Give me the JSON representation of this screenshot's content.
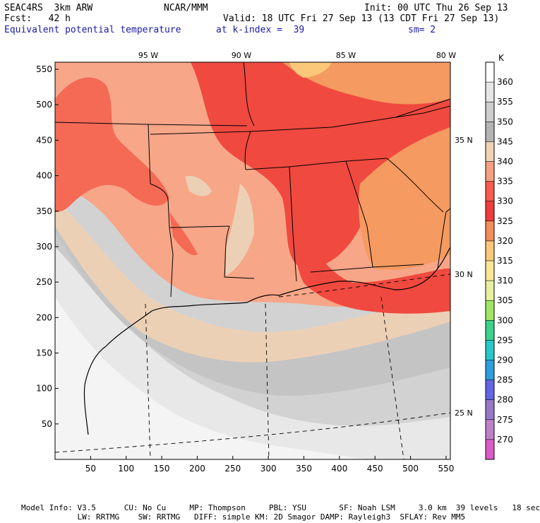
{
  "header": {
    "line1_left": "SEAC4RS  3km ARW",
    "line1_mid": "NCAR/MMM",
    "line1_right": "Init: 00 UTC Thu 26 Sep 13",
    "line2_left": "Fcst:   42 h",
    "line2_right": "Valid: 18 UTC Fri 27 Sep 13 (13 CDT Fri 27 Sep 13)",
    "line3_field": "Equivalent potential temperature",
    "line3_level": "at k-index =  39",
    "line3_sm": "sm= 2"
  },
  "axes": {
    "x_ticks": [
      "50",
      "100",
      "150",
      "200",
      "250",
      "300",
      "350",
      "400",
      "450",
      "500",
      "550"
    ],
    "y_ticks": [
      "50",
      "100",
      "150",
      "200",
      "250",
      "300",
      "350",
      "400",
      "450",
      "500",
      "550"
    ],
    "lon_labels": [
      "95 W",
      "90 W",
      "85 W",
      "80 W"
    ],
    "lat_labels": [
      "35 N",
      "30 N",
      "25 N"
    ]
  },
  "colorbar": {
    "unit": "K",
    "levels": [
      "360",
      "355",
      "350",
      "345",
      "340",
      "335",
      "330",
      "325",
      "320",
      "315",
      "310",
      "305",
      "300",
      "295",
      "290",
      "285",
      "280",
      "275",
      "270"
    ],
    "colors": [
      "#ffffff",
      "#e6e6e6",
      "#cccccc",
      "#b4b4b4",
      "#f0d2b4",
      "#f5a082",
      "#fa5a50",
      "#f03c3c",
      "#f58c5a",
      "#fac878",
      "#fae696",
      "#e6f0a0",
      "#a0e664",
      "#3cd28c",
      "#28c8c8",
      "#2ca0dc",
      "#6464e6",
      "#9678c8",
      "#be80c8",
      "#dc5ac8"
    ]
  },
  "footer": {
    "line1": "Model Info: V3.5      CU: No Cu     MP: Thompson     PBL: YSU       SF: Noah LSM     3.0 km  39 levels   18 sec",
    "line2": "            LW: RRTMG    SW: RRTMG   DIFF: simple KM: 2D Smagor DAMP: Rayleigh3  SFLAY: Rev MM5"
  },
  "map_colors": {
    "c360": "#ffffff",
    "c355": "#e8e8e8",
    "c350": "#d2d2d2",
    "c345": "#bdbdbd",
    "c340": "#ecd0b6",
    "c335": "#f7a688",
    "c330": "#f46a55",
    "c325": "#f0493f",
    "c320": "#f59a60"
  }
}
